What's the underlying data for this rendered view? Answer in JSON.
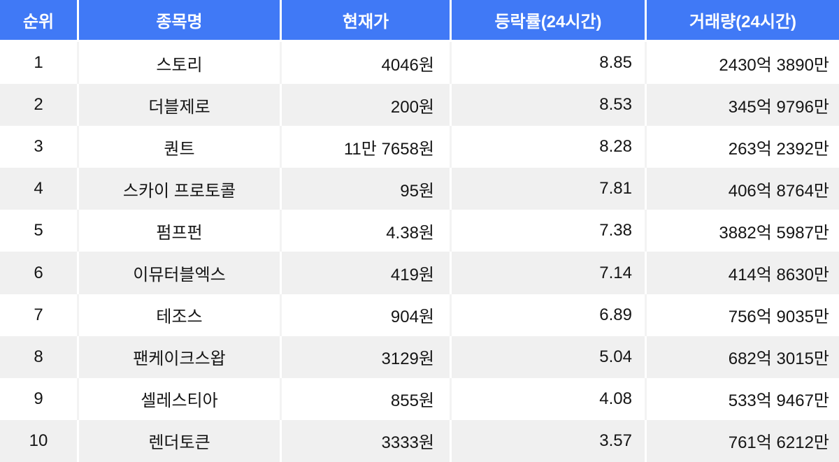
{
  "colors": {
    "header_bg": "#4079f6",
    "header_text": "#ffffff",
    "row_bg": "#ffffff",
    "row_alt_bg": "#f0f0f0",
    "text": "#151515"
  },
  "chart_data": {
    "type": "table",
    "title": "",
    "columns": [
      "순위",
      "종목명",
      "현재가",
      "등락률(24시간)",
      "거래량(24시간)"
    ],
    "rows": [
      {
        "rank": "1",
        "name": "스토리",
        "price": "4046원",
        "change": "8.85",
        "volume": "2430억 3890만"
      },
      {
        "rank": "2",
        "name": "더블제로",
        "price": "200원",
        "change": "8.53",
        "volume": "345억 9796만"
      },
      {
        "rank": "3",
        "name": "퀀트",
        "price": "11만 7658원",
        "change": "8.28",
        "volume": "263억 2392만"
      },
      {
        "rank": "4",
        "name": "스카이 프로토콜",
        "price": "95원",
        "change": "7.81",
        "volume": "406억 8764만"
      },
      {
        "rank": "5",
        "name": "펌프펀",
        "price": "4.38원",
        "change": "7.38",
        "volume": "3882억 5987만"
      },
      {
        "rank": "6",
        "name": "이뮤터블엑스",
        "price": "419원",
        "change": "7.14",
        "volume": "414억 8630만"
      },
      {
        "rank": "7",
        "name": "테조스",
        "price": "904원",
        "change": "6.89",
        "volume": "756억 9035만"
      },
      {
        "rank": "8",
        "name": "팬케이크스왑",
        "price": "3129원",
        "change": "5.04",
        "volume": "682억 3015만"
      },
      {
        "rank": "9",
        "name": "셀레스티아",
        "price": "855원",
        "change": "4.08",
        "volume": "533억 9467만"
      },
      {
        "rank": "10",
        "name": "렌더토큰",
        "price": "3333원",
        "change": "3.57",
        "volume": "761억 6212만"
      }
    ]
  }
}
